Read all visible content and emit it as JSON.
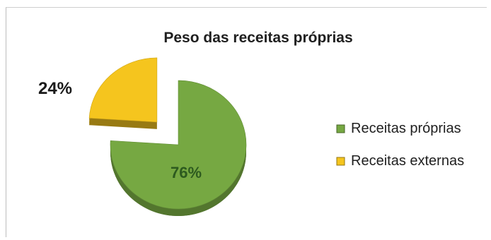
{
  "chart_data": {
    "type": "pie",
    "title": "Peso das receitas próprias",
    "series": [
      {
        "name": "",
        "slices": [
          {
            "label": "Receitas próprias",
            "value": 76,
            "data_label": "76%",
            "color": "#76a842"
          },
          {
            "label": "Receitas externas",
            "value": 24,
            "data_label": "24%",
            "color": "#f5c51e"
          }
        ]
      }
    ],
    "legend": "right",
    "exploded_slice": "Receitas externas",
    "start_angle_deg": 0,
    "direction": "clockwise"
  }
}
